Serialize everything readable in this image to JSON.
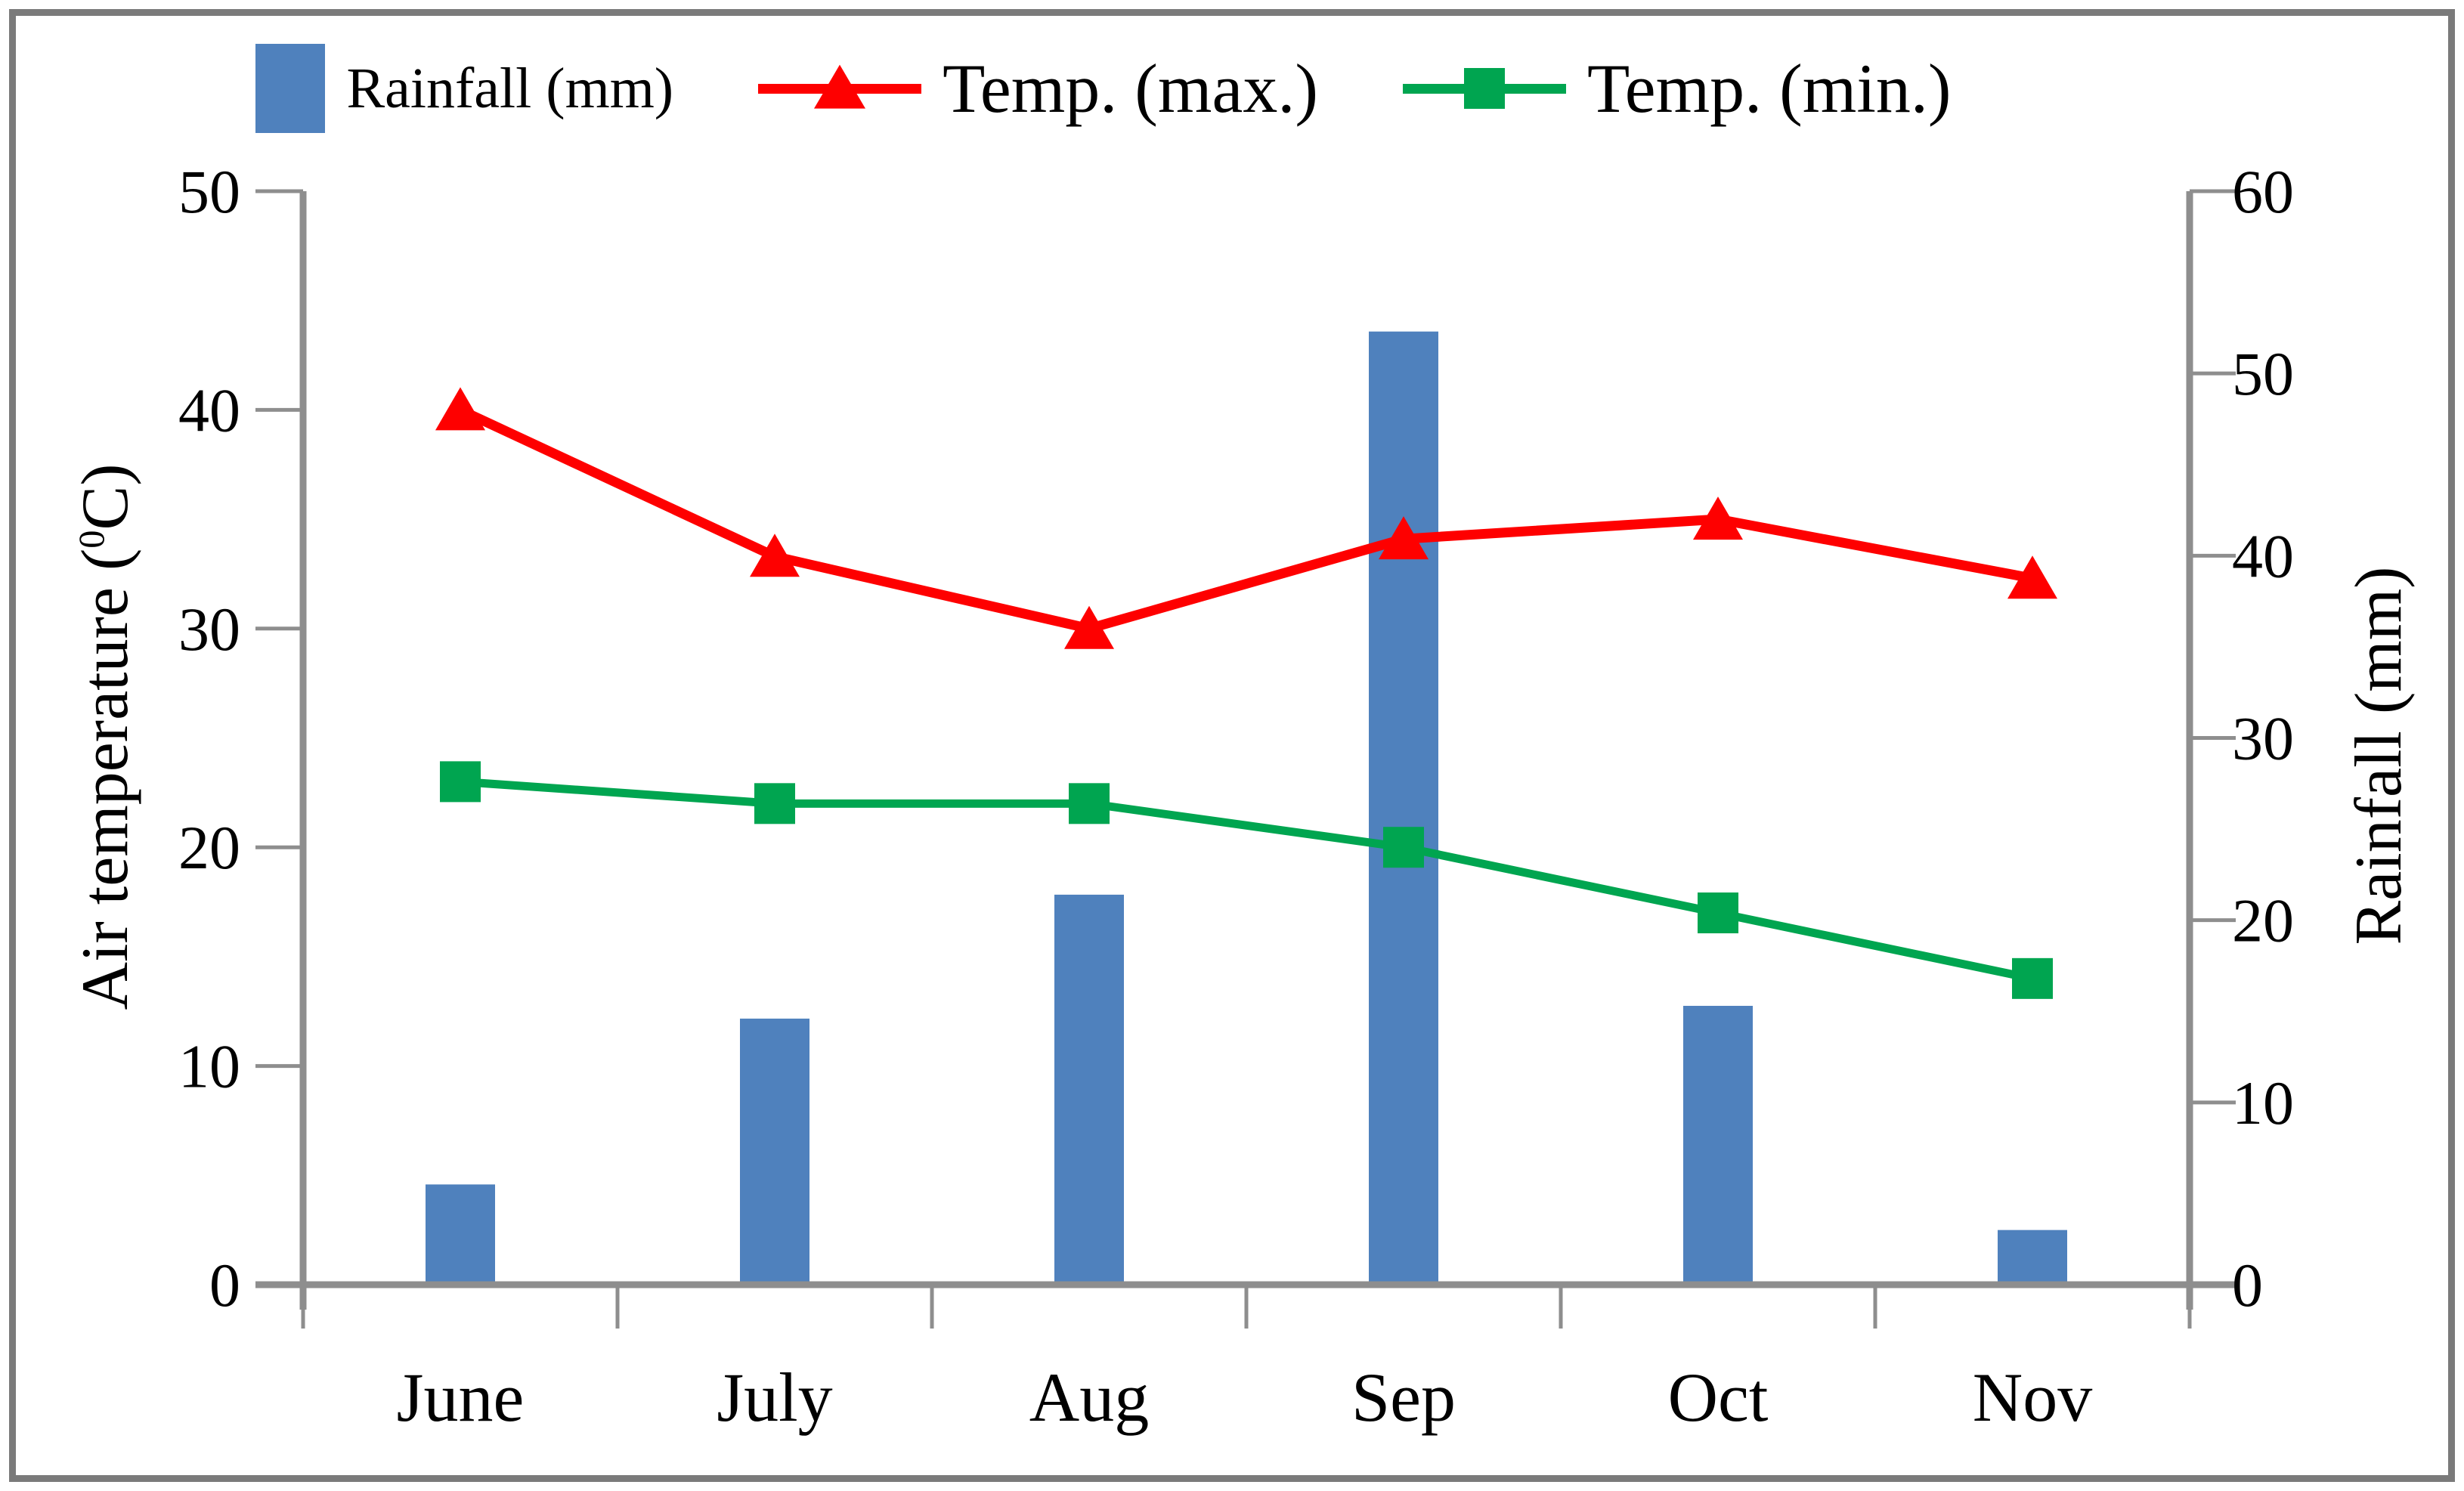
{
  "page": {
    "axis_color": "#8e8e8e",
    "border_color": "#7a7a7a",
    "text_color": "#000000",
    "background": "#ffffff"
  },
  "chart_data": {
    "type": "combo",
    "categories": [
      "June",
      "July",
      "Aug",
      "Sep",
      "Oct",
      "Nov"
    ],
    "series": [
      {
        "name": "Rainfall (mm)",
        "type": "bar",
        "axis": "right",
        "marker": "rect",
        "color": "#4F81BD",
        "values": [
          5.5,
          14.6,
          21.4,
          52.3,
          15.3,
          3.0
        ]
      },
      {
        "name": "Temp. (max.)",
        "type": "line",
        "axis": "left",
        "marker": "triangle",
        "color": "#FE0000",
        "values": [
          40,
          33.3,
          30,
          34.1,
          35,
          32.3
        ]
      },
      {
        "name": "Temp. (min.)",
        "type": "line",
        "axis": "left",
        "marker": "square",
        "color": "#00A550",
        "values": [
          23,
          22,
          22,
          20,
          17,
          14
        ]
      }
    ],
    "left_axis": {
      "title_prefix": "Air temperature (",
      "title_sup": "0",
      "title_suffix": "C)",
      "min": 0,
      "max": 50,
      "ticks": [
        0,
        10,
        20,
        30,
        40,
        50
      ]
    },
    "right_axis": {
      "title": "Rainfall (mm)",
      "min": 0,
      "max": 60,
      "ticks": [
        0,
        10,
        20,
        30,
        40,
        50,
        60
      ]
    },
    "legend_position": "top",
    "grid": false
  }
}
